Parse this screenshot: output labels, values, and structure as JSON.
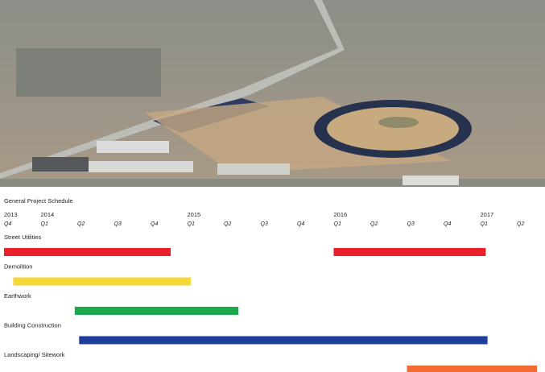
{
  "chart_data": {
    "type": "gantt",
    "title": "General Project Schedule",
    "xlim": [
      0,
      14.6
    ],
    "year_ticks": [
      {
        "value": 0,
        "label": "2013"
      },
      {
        "value": 1,
        "label": "2014"
      },
      {
        "value": 5,
        "label": "2015"
      },
      {
        "value": 9,
        "label": "2016"
      },
      {
        "value": 13,
        "label": "2017"
      }
    ],
    "xticks": [
      {
        "value": 0,
        "label": "Q4"
      },
      {
        "value": 1,
        "label": "Q1"
      },
      {
        "value": 2,
        "label": "Q2"
      },
      {
        "value": 3,
        "label": "Q3"
      },
      {
        "value": 4,
        "label": "Q4"
      },
      {
        "value": 5,
        "label": "Q1"
      },
      {
        "value": 6,
        "label": "Q2"
      },
      {
        "value": 7,
        "label": "Q3"
      },
      {
        "value": 8,
        "label": "Q4"
      },
      {
        "value": 9,
        "label": "Q1"
      },
      {
        "value": 10,
        "label": "Q2"
      },
      {
        "value": 11,
        "label": "Q3"
      },
      {
        "value": 12,
        "label": "Q4"
      },
      {
        "value": 13,
        "label": "Q1"
      },
      {
        "value": 14,
        "label": "Q2"
      }
    ],
    "tasks": [
      {
        "name": "Street Utilities",
        "color": "#e8202a",
        "segments": [
          [
            0,
            4.55
          ],
          [
            9,
            13.15
          ]
        ]
      },
      {
        "name": "Demolition",
        "color": "#f7d83a",
        "segments": [
          [
            0.25,
            5.1
          ]
        ]
      },
      {
        "name": "Earthwork",
        "color": "#1aa84a",
        "segments": [
          [
            1.93,
            6.4
          ]
        ]
      },
      {
        "name": "Building Construction",
        "color": "#1f3e99",
        "segments": [
          [
            2.05,
            13.2
          ]
        ]
      },
      {
        "name": "Landscaping/ Sitework",
        "color": "#f26b30",
        "segments": [
          [
            11,
            14.55
          ]
        ]
      }
    ]
  }
}
